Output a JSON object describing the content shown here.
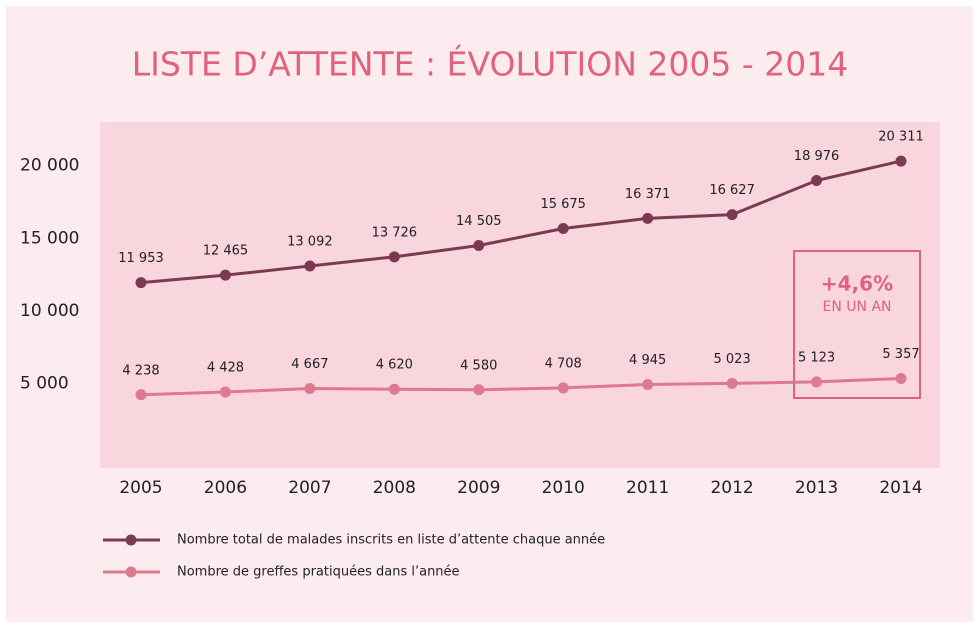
{
  "chart_data": {
    "type": "line",
    "title": "LISTE D’ATTENTE : ÉVOLUTION 2005 - 2014",
    "categories": [
      "2005",
      "2006",
      "2007",
      "2008",
      "2009",
      "2010",
      "2011",
      "2012",
      "2013",
      "2014"
    ],
    "series": [
      {
        "name": "Nombre total de malades inscrits en liste d’attente chaque année",
        "color": "#7b3a54",
        "values": [
          11953,
          12465,
          13092,
          13726,
          14505,
          15675,
          16371,
          16627,
          18976,
          20311
        ],
        "value_labels": [
          "11 953",
          "12 465",
          "13 092",
          "13 726",
          "14 505",
          "15 675",
          "16 371",
          "16 627",
          "18 976",
          "20 311"
        ]
      },
      {
        "name": "Nombre de greffes pratiquées dans l’année",
        "color": "#de7a90",
        "values": [
          4238,
          4428,
          4667,
          4620,
          4580,
          4708,
          4945,
          5023,
          5123,
          5357
        ],
        "value_labels": [
          "4 238",
          "4 428",
          "4 667",
          "4 620",
          "4 580",
          "4 708",
          "4 945",
          "5 023",
          "5 123",
          "5 357"
        ]
      }
    ],
    "ylim": [
      -800,
      23000
    ],
    "yticks": [
      {
        "value": 5000,
        "label": "5 000"
      },
      {
        "value": 10000,
        "label": "10 000"
      },
      {
        "value": 15000,
        "label": "15 000"
      },
      {
        "value": 20000,
        "label": "20 000"
      }
    ],
    "annotation": {
      "value": "+4,6%",
      "text": "EN UN AN"
    }
  }
}
